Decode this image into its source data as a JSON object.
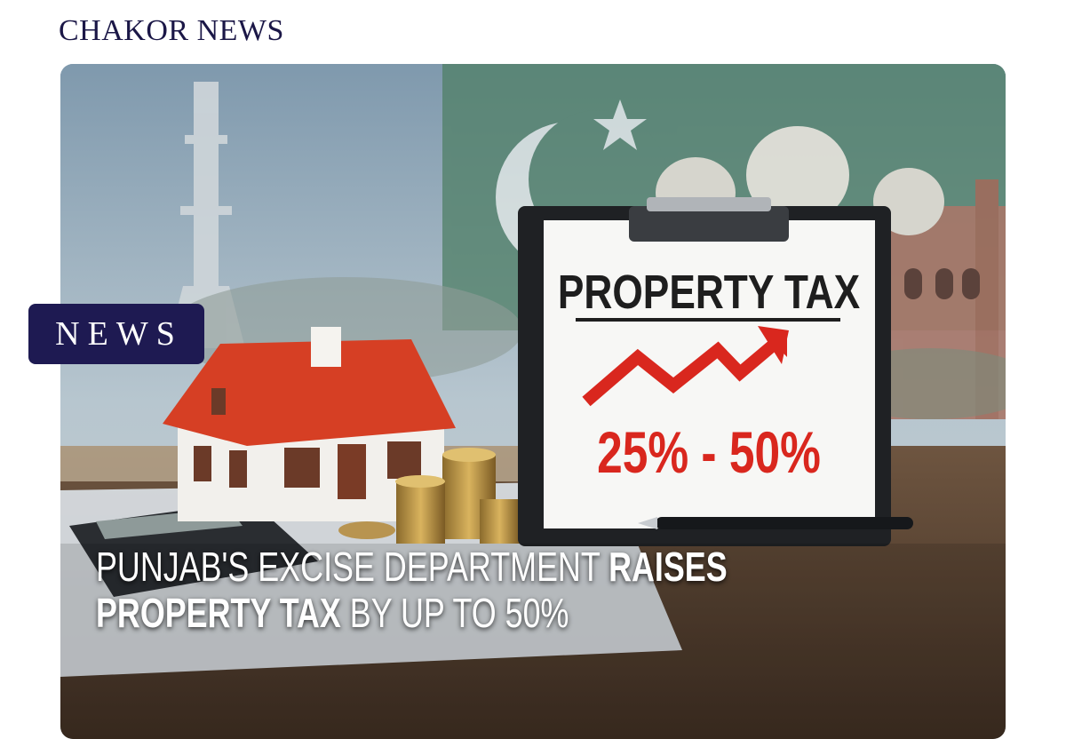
{
  "header": {
    "brand": "CHAKOR NEWS"
  },
  "badge": {
    "label": "NEWS"
  },
  "image": {
    "clipboard_title": "PROPERTY TAX",
    "clipboard_range": "25% - 50%"
  },
  "headline": {
    "line1_regular": "PUNJAB'S EXCISE DEPARTMENT ",
    "line1_bold": "RAISES",
    "line2_bold": "PROPERTY TAX",
    "line2_regular": " BY UP TO 50%"
  },
  "colors": {
    "brand": "#1b1747",
    "badge": "#1e1a52",
    "accent_red": "#d9271e"
  }
}
